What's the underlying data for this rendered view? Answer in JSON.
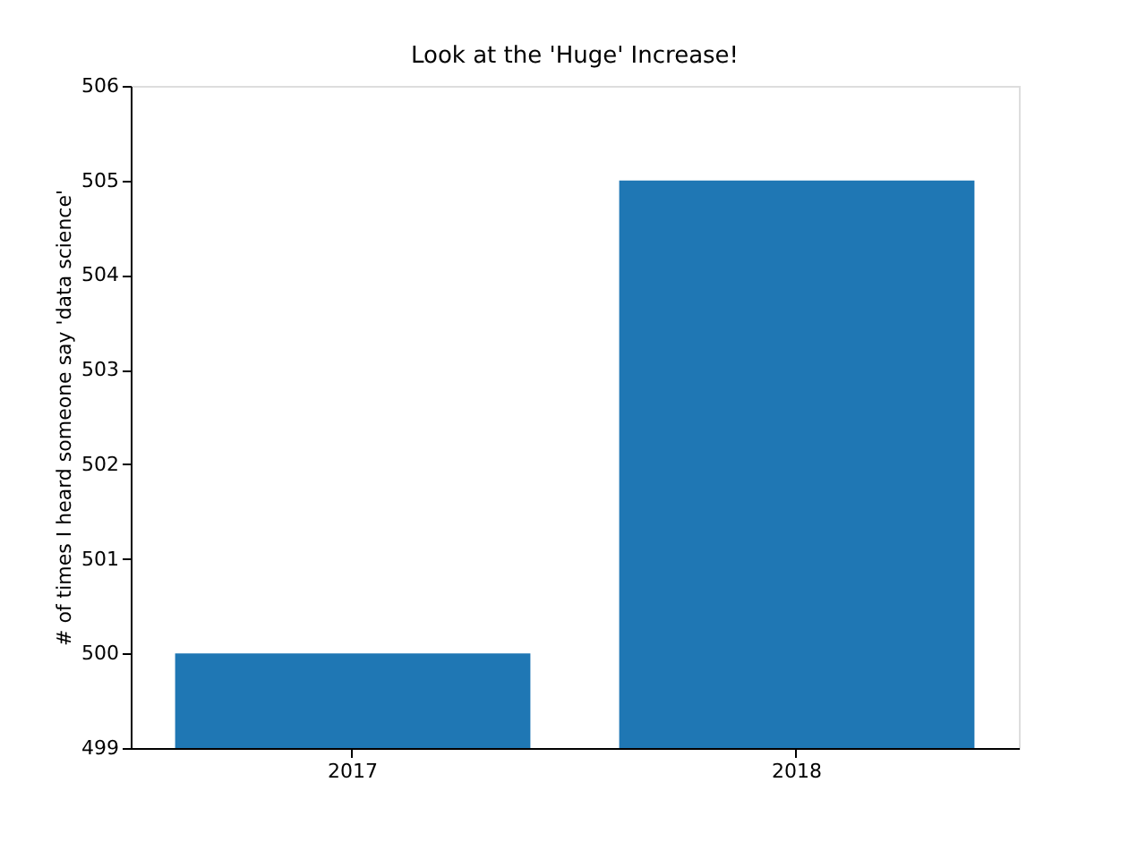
{
  "chart_data": {
    "type": "bar",
    "title": "Look at the 'Huge' Increase!",
    "ylabel": "# of times I heard someone say 'data science'",
    "categories": [
      "2017",
      "2018"
    ],
    "values": [
      500,
      505
    ],
    "color": "#1f77b4",
    "ylim": [
      499,
      506
    ],
    "yticks": [
      499,
      500,
      501,
      502,
      503,
      504,
      505,
      506
    ],
    "grid": false
  }
}
